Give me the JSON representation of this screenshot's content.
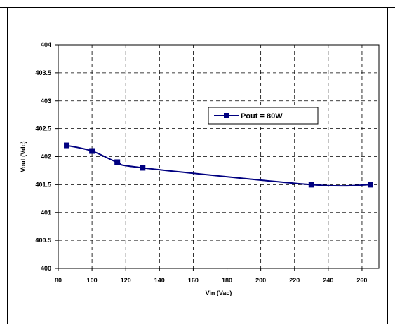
{
  "chart_data": {
    "type": "line",
    "title": "",
    "xlabel": "Vin (Vac)",
    "ylabel": "Vout (Vdc)",
    "xlim": [
      80,
      270
    ],
    "ylim": [
      400,
      404
    ],
    "x_ticks": [
      80,
      100,
      120,
      140,
      160,
      180,
      200,
      220,
      240,
      260
    ],
    "y_ticks": [
      400,
      400.5,
      401,
      401.5,
      402,
      402.5,
      403,
      403.5,
      404
    ],
    "grid": true,
    "legend_position": "center-right",
    "series": [
      {
        "name": "Pout = 80W",
        "color": "#000080",
        "marker": "square",
        "x": [
          85,
          100,
          115,
          130,
          230,
          265
        ],
        "y": [
          402.2,
          402.1,
          401.9,
          401.8,
          401.5,
          401.5
        ]
      }
    ]
  }
}
